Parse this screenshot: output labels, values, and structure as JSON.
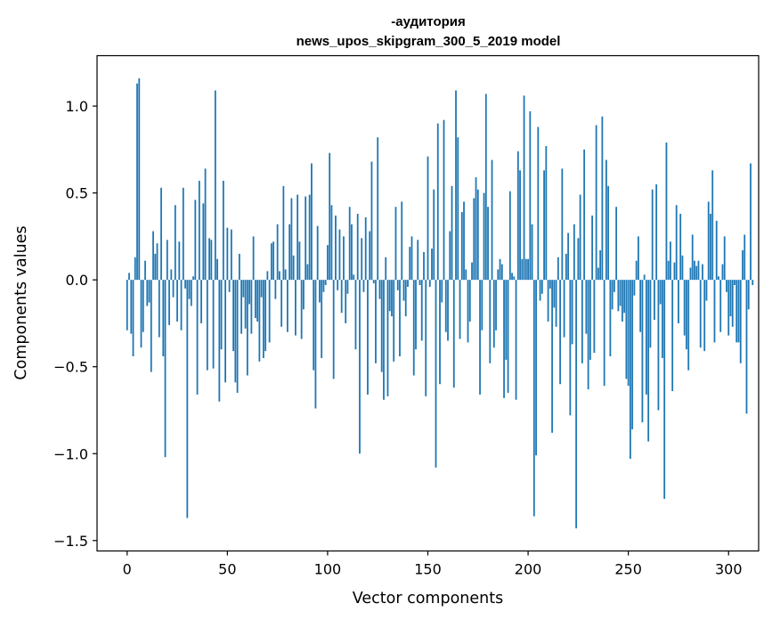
{
  "chart_data": {
    "type": "bar",
    "title_line1": "-аудитория",
    "title_line2": "news_upos_skipgram_300_5_2019 model",
    "xlabel": "Vector components",
    "ylabel": "Components values",
    "xlim": [
      -15,
      315
    ],
    "ylim": [
      -1.56,
      1.29
    ],
    "xticks": [
      0,
      50,
      100,
      150,
      200,
      250,
      300
    ],
    "yticks": [
      1.0,
      0.5,
      0.0,
      -0.5,
      -1.0,
      -1.5
    ],
    "ytick_labels": [
      "1.0",
      "0.5",
      "0.0",
      "−0.5",
      "−1.0",
      "−1.5"
    ],
    "bar_color": "#1f77b4",
    "values": [
      -0.29,
      0.04,
      -0.31,
      -0.44,
      0.13,
      1.13,
      1.16,
      -0.39,
      -0.3,
      0.11,
      -0.15,
      -0.13,
      -0.53,
      0.28,
      0.15,
      0.21,
      -0.33,
      0.53,
      -0.44,
      -1.02,
      0.23,
      -0.26,
      0.06,
      -0.1,
      0.43,
      -0.24,
      0.22,
      -0.29,
      0.53,
      -0.05,
      -1.37,
      -0.11,
      -0.15,
      0.02,
      0.46,
      -0.66,
      0.57,
      -0.25,
      0.44,
      0.64,
      -0.52,
      0.24,
      0.23,
      -0.51,
      1.09,
      0.12,
      -0.7,
      -0.4,
      0.57,
      -0.59,
      0.3,
      -0.07,
      0.29,
      -0.41,
      -0.59,
      -0.65,
      0.15,
      -0.31,
      -0.1,
      -0.28,
      -0.55,
      -0.14,
      -0.31,
      0.25,
      -0.22,
      -0.24,
      -0.47,
      -0.1,
      -0.45,
      -0.41,
      0.05,
      -0.36,
      0.21,
      0.22,
      -0.11,
      0.32,
      0.05,
      -0.27,
      0.54,
      0.06,
      -0.3,
      0.32,
      0.47,
      0.14,
      -0.32,
      0.49,
      0.22,
      -0.34,
      -0.17,
      0.48,
      0.09,
      0.49,
      0.67,
      -0.52,
      -0.74,
      0.31,
      -0.13,
      -0.45,
      -0.07,
      -0.03,
      0.2,
      0.73,
      0.43,
      -0.57,
      0.37,
      -0.06,
      0.29,
      -0.19,
      0.25,
      -0.25,
      -0.08,
      0.42,
      0.32,
      0.03,
      -0.4,
      0.38,
      -1.0,
      0.24,
      -0.07,
      0.36,
      -0.66,
      0.28,
      0.68,
      -0.02,
      -0.48,
      0.82,
      -0.11,
      -0.53,
      -0.69,
      0.13,
      -0.67,
      -0.18,
      -0.21,
      -0.47,
      0.42,
      -0.06,
      -0.44,
      0.45,
      -0.12,
      -0.21,
      -0.04,
      0.19,
      0.25,
      -0.55,
      -0.4,
      0.23,
      -0.03,
      -0.35,
      0.16,
      -0.67,
      0.71,
      -0.04,
      0.18,
      0.52,
      -1.08,
      0.9,
      -0.6,
      -0.13,
      0.92,
      -0.3,
      -0.35,
      0.28,
      0.54,
      -0.62,
      1.09,
      0.82,
      -0.34,
      0.39,
      0.45,
      0.06,
      -0.36,
      -0.24,
      0.1,
      0.47,
      0.59,
      0.52,
      -0.66,
      -0.29,
      0.5,
      1.07,
      0.42,
      -0.48,
      0.69,
      -0.39,
      -0.29,
      0.06,
      0.12,
      0.09,
      -0.68,
      -0.46,
      -0.65,
      0.51,
      0.04,
      0.02,
      -0.69,
      0.74,
      0.63,
      0.12,
      1.06,
      0.12,
      0.12,
      0.97,
      0.32,
      -1.36,
      -1.01,
      0.88,
      -0.12,
      -0.08,
      0.63,
      0.77,
      -0.24,
      -0.05,
      -0.88,
      -0.16,
      -0.27,
      0.13,
      -0.6,
      0.64,
      -0.33,
      0.15,
      0.27,
      -0.78,
      -0.37,
      0.32,
      -1.43,
      0.24,
      0.49,
      -0.48,
      0.75,
      -0.31,
      -0.63,
      -0.46,
      0.37,
      -0.42,
      0.89,
      0.07,
      0.17,
      0.94,
      -0.61,
      0.69,
      0.54,
      -0.44,
      -0.17,
      -0.07,
      0.42,
      -0.18,
      -0.15,
      -0.24,
      -0.19,
      -0.57,
      -0.61,
      -1.03,
      -0.86,
      -0.09,
      0.11,
      0.25,
      -0.3,
      -0.82,
      0.03,
      -0.66,
      -0.93,
      -0.39,
      0.52,
      -0.23,
      0.55,
      -0.75,
      -0.14,
      -0.45,
      -1.26,
      0.79,
      0.11,
      0.22,
      -0.64,
      0.1,
      0.43,
      -0.25,
      0.38,
      0.14,
      -0.32,
      -0.4,
      -0.52,
      0.07,
      0.26,
      0.11,
      0.08,
      0.11,
      -0.39,
      0.09,
      -0.41,
      -0.12,
      0.45,
      0.38,
      0.63,
      -0.36,
      0.34,
      0.02,
      -0.3,
      0.09,
      0.25,
      -0.07,
      -0.32,
      -0.21,
      -0.27,
      -0.03,
      -0.36,
      -0.36,
      -0.48,
      0.17,
      0.26,
      -0.77,
      -0.17,
      0.67,
      -0.03
    ]
  }
}
